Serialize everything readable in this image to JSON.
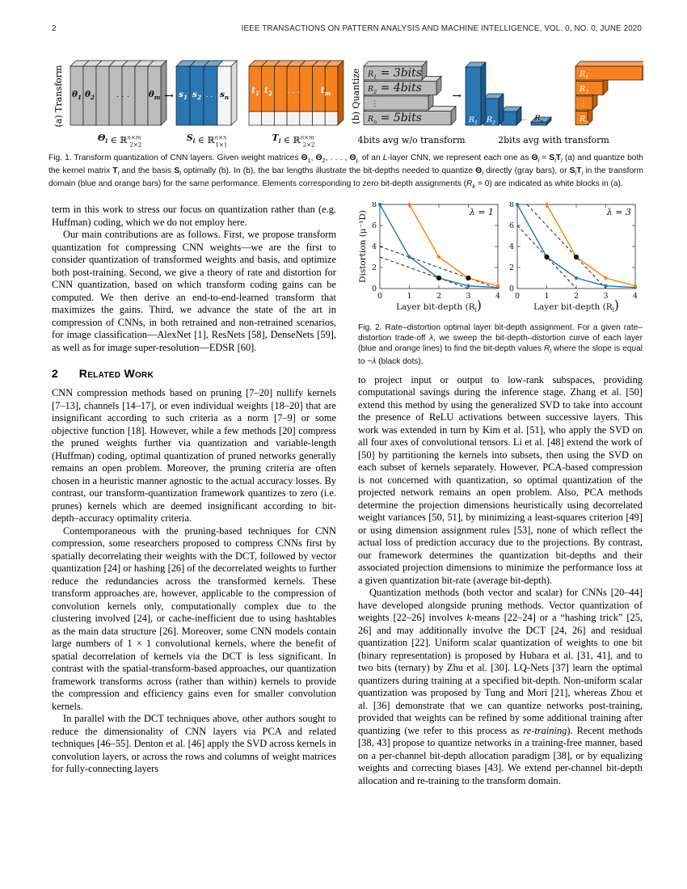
{
  "header": {
    "page_number": "2",
    "journal": "IEEE TRANSACTIONS ON PATTERN ANALYSIS AND MACHINE INTELLIGENCE,   VOL. 0,   NO. 0,   JUNE 2020"
  },
  "figure1": {
    "label_a": "(a) Transform",
    "label_b": "(b) Quantize",
    "arrow": "→",
    "gray_block_labels": [
      "θ_1",
      "θ_2",
      ". . .",
      "θ_m"
    ],
    "blue_block_labels": [
      "s_1",
      "s_2",
      ". .",
      "s_n"
    ],
    "orange_block_labels": [
      "t_1",
      "t_2",
      ". . .",
      "t_m"
    ],
    "theta_formula": {
      "lhs": "Θ_l",
      "rel": " ∈ ℝ",
      "sup": "n×m",
      "sub": "2×2"
    },
    "s_formula": {
      "lhs": "S_l",
      "rel": " ∈ ℝ",
      "sup": "n×n",
      "sub": "1×1"
    },
    "t_formula": {
      "lhs": "T_l",
      "rel": " ∈ ℝ",
      "sup": "n×m",
      "sub": "2×2"
    },
    "gray_bar_labels": [
      "R_1 = 3bits",
      "R_2 = 4bits",
      "⋮",
      "R_n = 5bits"
    ],
    "blue_bar_labels": [
      "R_1",
      "R_2",
      "⋯",
      "R_n"
    ],
    "orange_bar_labels": [
      "R_1",
      "R_2",
      "⋮",
      "R_n"
    ],
    "caption_no_transform": "4bits avg w/o transform",
    "caption_with_transform": "2bits avg with transform",
    "caption_html": "Fig. 1. Transform quantization of CNN layers. Given weight matrices <b>Θ</b><sub>1</sub>, <b>Θ</b><sub>2</sub>, . . . , <b>Θ</b><sub><i>L</i></sub> of an <i>L</i>-layer CNN, we represent each one as <b>Θ</b><sub><i>l</i></sub> = <b>S</b><sub><i>l</i></sub><b>T</b><sub><i>l</i></sub> (a) and quantize both the kernel matrix <b>T</b><sub><i>l</i></sub> and the basis <b>S</b><sub><i>l</i></sub> optimally (b). In (b), the bar lengths illustrate the bit-depths needed to quantize <b>Θ</b><sub><i>l</i></sub> directly (gray bars), or <b>S</b><sub><i>l</i></sub><b>T</b><sub><i>l</i></sub> in the transform domain (blue and orange bars) for the same performance. Elements corresponding to zero bit-depth assignments (<i>R<sub>k</sub></i> = 0) are indicated as white blocks in (a).",
    "colors": {
      "gray_front": "#bcbcbc",
      "gray_top": "#dcdcdc",
      "gray_side": "#949494",
      "blue_front": "#2a77b3",
      "blue_top": "#74a9cf",
      "blue_side": "#1c5a8a",
      "orange_front": "#f5821f",
      "orange_top": "#f8a55c",
      "orange_side": "#c05f04",
      "white_front": "#f4f4f4",
      "white_top": "#fbfbfb",
      "white_side": "#dcdcdc",
      "stroke": "#1b1b1b"
    }
  },
  "figure2": {
    "caption_html": "Fig. 2. Rate–distortion optimal layer bit-depth assignment. For a given rate–distortion trade-off <i>λ</i>, we sweep the bit-depth–distortion curve of each layer (blue and orange lines) to find the bit-depth values <i>R<sub>l</sub></i> where the slope is equal to −<i>λ</i> (black dots)."
  },
  "chart_data": [
    {
      "type": "line",
      "lambda_label": "λ = 1",
      "xlabel": "Layer bit-depth (R_l)",
      "ylabel": "Distortion (μ⁻¹D)",
      "xlim": [
        0,
        4
      ],
      "ylim": [
        0,
        8
      ],
      "xticks": [
        0,
        1,
        2,
        3,
        4
      ],
      "yticks": [
        0,
        2,
        4,
        6,
        8
      ],
      "grid": false,
      "series": [
        {
          "name": "layer-blue",
          "color": "#1f77b4",
          "points": [
            [
              0,
              8
            ],
            [
              1,
              3
            ],
            [
              2,
              1
            ],
            [
              3,
              0.25
            ],
            [
              4,
              0.1
            ]
          ]
        },
        {
          "name": "layer-orange",
          "color": "#ff7f0e",
          "points": [
            [
              1,
              8
            ],
            [
              2,
              3
            ],
            [
              3,
              1
            ],
            [
              4,
              0.25
            ]
          ]
        }
      ],
      "tangent_lines": [
        {
          "from": [
            0,
            3
          ],
          "to": [
            3,
            0
          ]
        },
        {
          "from": [
            0,
            4
          ],
          "to": [
            4,
            0
          ]
        }
      ],
      "optimal_points": [
        [
          2,
          1
        ],
        [
          3,
          1
        ]
      ]
    },
    {
      "type": "line",
      "lambda_label": "λ = 3",
      "xlabel": "Layer bit-depth (R_l)",
      "ylabel": "",
      "xlim": [
        0,
        4
      ],
      "ylim": [
        0,
        8
      ],
      "xticks": [
        0,
        1,
        2,
        3,
        4
      ],
      "yticks": [
        0,
        2,
        4,
        6,
        8
      ],
      "grid": false,
      "series": [
        {
          "name": "layer-blue",
          "color": "#1f77b4",
          "points": [
            [
              0,
              8
            ],
            [
              1,
              3
            ],
            [
              2,
              1
            ],
            [
              3,
              0.25
            ],
            [
              4,
              0.1
            ]
          ]
        },
        {
          "name": "layer-orange",
          "color": "#ff7f0e",
          "points": [
            [
              1,
              8
            ],
            [
              2,
              3
            ],
            [
              3,
              1
            ],
            [
              4,
              0.25
            ]
          ]
        }
      ],
      "tangent_lines": [
        {
          "from": [
            0,
            6
          ],
          "to": [
            2,
            0
          ]
        },
        {
          "from": [
            0.333,
            8
          ],
          "to": [
            3,
            0
          ]
        }
      ],
      "optimal_points": [
        [
          1,
          3
        ],
        [
          2,
          3
        ]
      ]
    }
  ],
  "left_column": {
    "p0": "term in this work to stress our focus on quantization rather than (e.g. Huffman) coding, which we do not employ here.",
    "p1": "Our main contributions are as follows. First, we propose transform quantization for compressing CNN weights—we are the first to consider quantization of transformed weights and basis, and optimize both post-training. Second, we give a theory of rate and distortion for CNN quantization, based on which transform coding gains can be computed. We then derive an end-to-end-learned transform that maximizes the gains. Third, we advance the state of the art in compression of CNNs, in both retrained and non-retrained scenarios, for image classification—AlexNet [1], ResNets [58], DenseNets [59], as well as for image super-resolution—EDSR [60].",
    "heading_number": "2",
    "heading_title": "Related Work",
    "p2": "CNN compression methods based on pruning [7–20] nullify kernels [7–13], channels [14–17], or even individual weights [18–20] that are insignificant according to such criteria as a norm [7–9] or some objective function [18]. However, while a few methods [20] compress the pruned weights further via quantization and variable-length (Huffman) coding, optimal quantization of pruned networks generally remains an open problem. Moreover, the pruning criteria are often chosen in a heuristic manner agnostic to the actual accuracy losses. By contrast, our transform-quantization framework quantizes to zero (i.e. prunes) kernels which are deemed insignificant according to bit-depth–accuracy optimality criteria.",
    "p3": "Contemporaneous with the pruning-based techniques for CNN compression, some researchers proposed to compress CNNs first by spatially decorrelating their weights with the DCT, followed by vector quantization [24] or hashing [26] of the decorrelated weights to further reduce the redundancies across the transformed kernels. These transform approaches are, however, applicable to the compression of convolution kernels only, computationally complex due to the clustering involved [24], or cache-inefficient due to using hashtables as the main data structure [26]. Moreover, some CNN models contain large numbers of 1 × 1 convolutional kernels, where the benefit of spatial decorrelation of kernels via the DCT is less significant. In contrast with the spatial-transform-based approaches, our quantization framework transforms across (rather than within) kernels to provide the compression and efficiency gains even for smaller convolution kernels.",
    "p4": "In parallel with the DCT techniques above, other authors sought to reduce the dimensionality of CNN layers via PCA and related techniques [46–55]. Denton et al. [46] apply the SVD across kernels in convolution layers, or across the rows and columns of weight matrices for fully-connecting layers"
  },
  "right_column": {
    "p5": "to project input or output to low-rank subspaces, providing computational savings during the inference stage. Zhang et al. [50] extend this method by using the generalized SVD to take into account the presence of ReLU activations between successive layers. This work was extended in turn by Kim et al. [51], who apply the SVD on all four axes of convolutional tensors. Li et al. [48] extend the work of [50] by partitioning the kernels into subsets, then using the SVD on each subset of kernels separately. However, PCA-based compression is not concerned with quantization, so optimal quantization of the projected network remains an open problem. Also, PCA methods determine the projection dimensions heuristically using decorrelated weight variances [50, 51], by minimizing a least-squares criterion [49] or using dimension assignment rules [53], none of which reflect the actual loss of prediction accuracy due to the projections. By contrast, our framework determines the quantization bit-depths and their associated projection dimensions to minimize the performance loss at a given quantization bit-rate (average bit-depth).",
    "p6": "Quantization methods (both vector and scalar) for CNNs [20–44] have developed alongside pruning methods. Vector quantization of weights [22–26] involves <i>k</i>-means [22–24] or a “hashing trick” [25, 26] and may additionally involve the DCT [24, 26] and residual quantization [22]. Uniform scalar quantization of weights to one bit (binary representation) is proposed by Hubara et al. [31, 41], and to two bits (ternary) by Zhu et al. [30]. LQ-Nets [37] learn the optimal quantizers during training at a specified bit-depth. Non-uniform scalar quantization was proposed by Tung and Mori [21], whereas Zhou et al. [36] demonstrate that we can quantize networks post-training, provided that weights can be refined by some additional training after quantizing (we refer to this process as <i>re-training</i>). Recent methods [38, 43] propose to quantize networks in a training-free manner, based on a per-channel bit-depth allocation paradigm [38], or by equalizing weights and correcting biases [43]. We extend per-channel bit-depth allocation and re-training to the transform domain."
  }
}
